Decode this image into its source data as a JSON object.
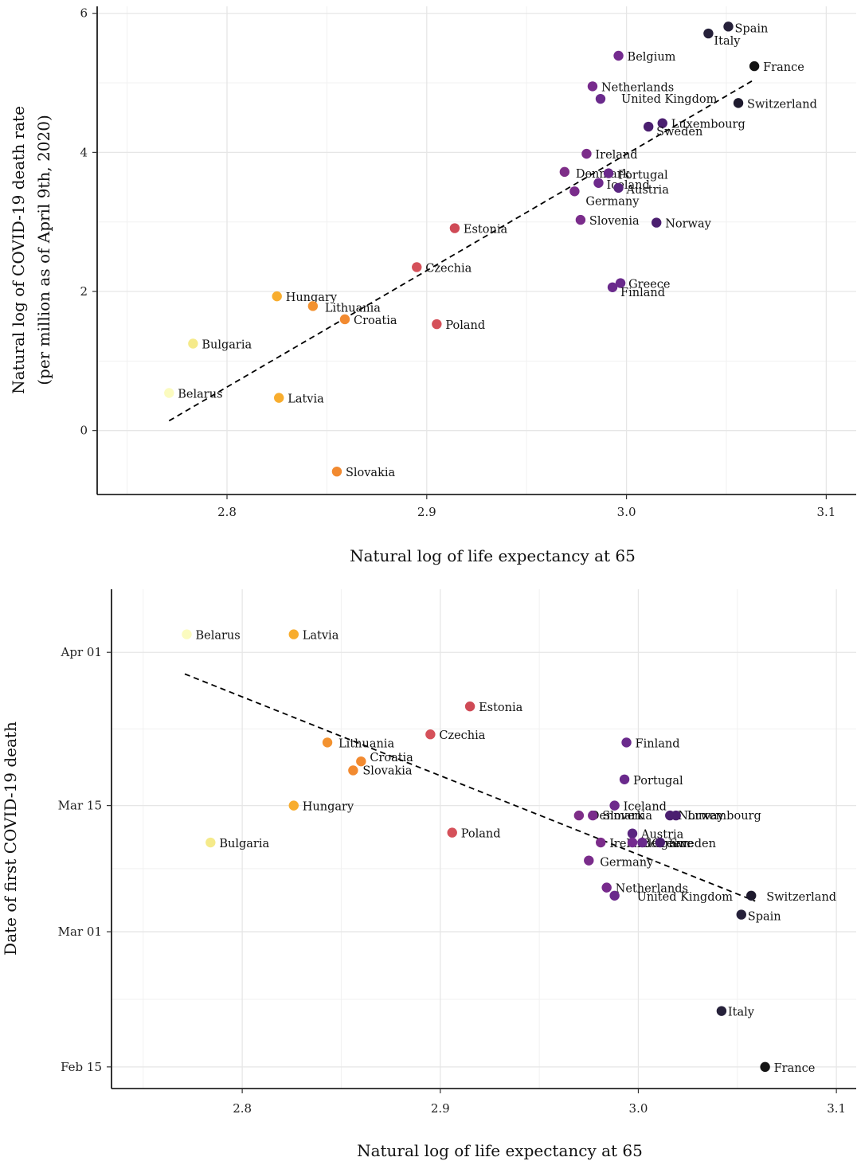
{
  "chart_data": [
    {
      "type": "scatter",
      "xlabel": "Natural log of life expectancy at 65",
      "ylabel": [
        "Natural log of COVID-19 death rate",
        "(per million as of April 9th, 2020)"
      ],
      "xlim": [
        2.735,
        3.115
      ],
      "ylim": [
        -0.92,
        6.1
      ],
      "x_ticks": [
        2.8,
        2.9,
        3.0,
        3.1
      ],
      "x_tick_labels": [
        "2.8",
        "2.9",
        "3.0",
        "3.1"
      ],
      "y_ticks": [
        0,
        2,
        4,
        6
      ],
      "y_tick_labels": [
        "0",
        "2",
        "4",
        "6"
      ],
      "grid": true,
      "trend_line": {
        "style": "dashed",
        "x": [
          2.771,
          3.063
        ],
        "y": [
          0.14,
          5.03
        ]
      },
      "points": [
        {
          "label": "Spain",
          "x": 3.051,
          "y": 5.81,
          "color": "#26213a"
        },
        {
          "label": "Italy",
          "x": 3.041,
          "y": 5.71,
          "color": "#26213a"
        },
        {
          "label": "France",
          "x": 3.064,
          "y": 5.24,
          "color": "#141414"
        },
        {
          "label": "Belgium",
          "x": 2.996,
          "y": 5.39,
          "color": "#742b8f"
        },
        {
          "label": "Netherlands",
          "x": 2.983,
          "y": 4.95,
          "color": "#772a8c"
        },
        {
          "label": "United Kingdom",
          "x": 2.987,
          "y": 4.77,
          "color": "#6a2a8c"
        },
        {
          "label": "Switzerland",
          "x": 3.056,
          "y": 4.71,
          "color": "#1e1a2e"
        },
        {
          "label": "Luxembourg",
          "x": 3.018,
          "y": 4.42,
          "color": "#4b1f70"
        },
        {
          "label": "Sweden",
          "x": 3.011,
          "y": 4.37,
          "color": "#4b1f70"
        },
        {
          "label": "Ireland",
          "x": 2.98,
          "y": 3.98,
          "color": "#7b2c8a"
        },
        {
          "label": "Denmark",
          "x": 2.969,
          "y": 3.72,
          "color": "#7e2e88"
        },
        {
          "label": "Portugal",
          "x": 2.991,
          "y": 3.7,
          "color": "#6a2a8c"
        },
        {
          "label": "Iceland",
          "x": 2.986,
          "y": 3.56,
          "color": "#6e2a8c"
        },
        {
          "label": "Austria",
          "x": 2.996,
          "y": 3.49,
          "color": "#5a2680"
        },
        {
          "label": "Germany",
          "x": 2.974,
          "y": 3.44,
          "color": "#7a2c8b"
        },
        {
          "label": "Slovenia",
          "x": 2.977,
          "y": 3.03,
          "color": "#7a2c8b"
        },
        {
          "label": "Norway",
          "x": 3.015,
          "y": 2.99,
          "color": "#4b1f70"
        },
        {
          "label": "Estonia",
          "x": 2.914,
          "y": 2.91,
          "color": "#cf4a56"
        },
        {
          "label": "Czechia",
          "x": 2.895,
          "y": 2.35,
          "color": "#d5515a"
        },
        {
          "label": "Greece",
          "x": 2.997,
          "y": 2.12,
          "color": "#6a2a8c"
        },
        {
          "label": "Finland",
          "x": 2.993,
          "y": 2.06,
          "color": "#6a2a8c"
        },
        {
          "label": "Hungary",
          "x": 2.825,
          "y": 1.93,
          "color": "#f8ad2e"
        },
        {
          "label": "Lithuania",
          "x": 2.843,
          "y": 1.79,
          "color": "#f39230"
        },
        {
          "label": "Croatia",
          "x": 2.859,
          "y": 1.6,
          "color": "#f28a30"
        },
        {
          "label": "Poland",
          "x": 2.905,
          "y": 1.53,
          "color": "#d5515a"
        },
        {
          "label": "Bulgaria",
          "x": 2.783,
          "y": 1.25,
          "color": "#f5ea8a"
        },
        {
          "label": "Belarus",
          "x": 2.771,
          "y": 0.54,
          "color": "#fbfbbf"
        },
        {
          "label": "Latvia",
          "x": 2.826,
          "y": 0.47,
          "color": "#f8ad2e"
        },
        {
          "label": "Slovakia",
          "x": 2.855,
          "y": -0.59,
          "color": "#f28a30"
        }
      ]
    },
    {
      "type": "scatter",
      "xlabel": "Natural log of life expectancy at 65",
      "ylabel": [
        "Date of first COVID-19 death"
      ],
      "xlim": [
        2.734,
        3.11
      ],
      "ylim": [
        -2.4,
        53
      ],
      "y_unit": "days since Feb 15, 2020",
      "x_ticks": [
        2.8,
        2.9,
        3.0,
        3.1
      ],
      "x_tick_labels": [
        "2.8",
        "2.9",
        "3.0",
        "3.1"
      ],
      "y_ticks": [
        0,
        15,
        29,
        46
      ],
      "y_tick_labels": [
        "Feb 15",
        "Mar 01",
        "Mar 15",
        "Apr 01"
      ],
      "grid": true,
      "trend_line": {
        "style": "dashed",
        "x": [
          2.771,
          3.059
        ],
        "y": [
          43.6,
          18.4
        ]
      },
      "points": [
        {
          "label": "Belarus",
          "x": 2.772,
          "y": 48.0,
          "color": "#fbfbbf"
        },
        {
          "label": "Latvia",
          "x": 2.826,
          "y": 48.0,
          "color": "#f8ad2e"
        },
        {
          "label": "Estonia",
          "x": 2.915,
          "y": 40.0,
          "color": "#cf4a56"
        },
        {
          "label": "Czechia",
          "x": 2.895,
          "y": 36.9,
          "color": "#d5515a"
        },
        {
          "label": "Lithuania",
          "x": 2.843,
          "y": 36.0,
          "color": "#f39230"
        },
        {
          "label": "Finland",
          "x": 2.994,
          "y": 36.0,
          "color": "#6a2a8c"
        },
        {
          "label": "Croatia",
          "x": 2.86,
          "y": 33.9,
          "color": "#f28a30"
        },
        {
          "label": "Slovakia",
          "x": 2.856,
          "y": 32.9,
          "color": "#f28a30"
        },
        {
          "label": "Portugal",
          "x": 2.993,
          "y": 31.9,
          "color": "#6a2a8c"
        },
        {
          "label": "Hungary",
          "x": 2.826,
          "y": 29.0,
          "color": "#f8ad2e"
        },
        {
          "label": "Iceland",
          "x": 2.988,
          "y": 29.0,
          "color": "#6e2a8c"
        },
        {
          "label": "Denmark",
          "x": 2.97,
          "y": 27.9,
          "color": "#7e2e88"
        },
        {
          "label": "Slovenia",
          "x": 2.977,
          "y": 27.9,
          "color": "#7a2c8b"
        },
        {
          "label": "Norway",
          "x": 3.016,
          "y": 27.9,
          "color": "#4b1f70"
        },
        {
          "label": "Luxembourg",
          "x": 3.019,
          "y": 27.9,
          "color": "#4b1f70"
        },
        {
          "label": "Poland",
          "x": 2.906,
          "y": 26.0,
          "color": "#d5515a"
        },
        {
          "label": "Austria",
          "x": 2.997,
          "y": 25.9,
          "color": "#5a2680"
        },
        {
          "label": "Bulgaria",
          "x": 2.784,
          "y": 24.9,
          "color": "#f5ea8a"
        },
        {
          "label": "Ireland",
          "x": 2.981,
          "y": 24.9,
          "color": "#7b2c8a"
        },
        {
          "label": "Belgium",
          "x": 2.997,
          "y": 24.9,
          "color": "#742b8f"
        },
        {
          "label": "Greece",
          "x": 3.002,
          "y": 24.9,
          "color": "#6a2a8c"
        },
        {
          "label": "Sweden",
          "x": 3.011,
          "y": 24.9,
          "color": "#4b1f70"
        },
        {
          "label": "Germany",
          "x": 2.975,
          "y": 22.9,
          "color": "#7a2c8b"
        },
        {
          "label": "Netherlands",
          "x": 2.984,
          "y": 19.9,
          "color": "#772a8c"
        },
        {
          "label": "United Kingdom",
          "x": 2.988,
          "y": 19.0,
          "color": "#6a2a8c"
        },
        {
          "label": "Switzerland",
          "x": 3.057,
          "y": 19.0,
          "color": "#1e1a2e"
        },
        {
          "label": "Spain",
          "x": 3.052,
          "y": 16.9,
          "color": "#26213a"
        },
        {
          "label": "Italy",
          "x": 3.042,
          "y": 6.2,
          "color": "#26213a"
        },
        {
          "label": "France",
          "x": 3.064,
          "y": 0.0,
          "color": "#141414"
        }
      ]
    }
  ]
}
